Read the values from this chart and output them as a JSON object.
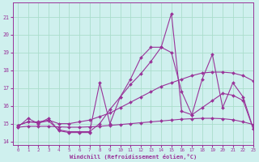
{
  "background_color": "#cff0ee",
  "grid_color": "#aaddcc",
  "line_color": "#993399",
  "xlim": [
    -0.5,
    23
  ],
  "ylim": [
    13.8,
    21.8
  ],
  "yticks": [
    14,
    15,
    16,
    17,
    18,
    19,
    20,
    21
  ],
  "xticks": [
    0,
    1,
    2,
    3,
    4,
    5,
    6,
    7,
    8,
    9,
    10,
    11,
    12,
    13,
    14,
    15,
    16,
    17,
    18,
    19,
    20,
    21,
    22,
    23
  ],
  "xlabel": "Windchill (Refroidissement éolien,°C)",
  "series": [
    {
      "x": [
        0,
        1,
        2,
        3,
        4,
        5,
        6,
        7,
        8,
        9,
        10,
        11,
        12,
        13,
        14,
        15,
        16,
        17,
        18,
        19,
        20,
        21,
        22,
        23
      ],
      "y": [
        14.8,
        15.3,
        15.0,
        15.3,
        14.6,
        14.5,
        14.5,
        14.5,
        17.3,
        15.0,
        16.5,
        17.5,
        18.7,
        19.3,
        19.3,
        21.2,
        15.7,
        15.5,
        17.5,
        18.9,
        15.9,
        17.3,
        16.5,
        14.7
      ]
    },
    {
      "x": [
        0,
        1,
        2,
        3,
        4,
        5,
        6,
        7,
        8,
        9,
        10,
        11,
        12,
        13,
        14,
        15,
        16,
        17,
        18,
        19,
        20,
        21,
        22,
        23
      ],
      "y": [
        14.9,
        15.1,
        15.1,
        15.2,
        15.0,
        15.0,
        15.1,
        15.2,
        15.4,
        15.6,
        15.9,
        16.2,
        16.5,
        16.8,
        17.1,
        17.3,
        17.5,
        17.7,
        17.85,
        17.9,
        17.9,
        17.85,
        17.7,
        17.4
      ]
    },
    {
      "x": [
        0,
        1,
        2,
        3,
        4,
        5,
        6,
        7,
        8,
        9,
        10,
        11,
        12,
        13,
        14,
        15,
        16,
        17,
        18,
        19,
        20,
        21,
        22,
        23
      ],
      "y": [
        14.8,
        14.85,
        14.85,
        14.85,
        14.82,
        14.8,
        14.8,
        14.82,
        14.85,
        14.9,
        14.95,
        15.0,
        15.05,
        15.1,
        15.15,
        15.2,
        15.25,
        15.28,
        15.3,
        15.3,
        15.28,
        15.22,
        15.1,
        14.95
      ]
    },
    {
      "x": [
        0,
        1,
        2,
        3,
        4,
        5,
        6,
        7,
        8,
        9,
        10,
        11,
        12,
        13,
        14,
        15,
        16,
        17,
        18,
        19,
        20,
        21,
        22,
        23
      ],
      "y": [
        14.9,
        15.1,
        15.05,
        15.15,
        14.65,
        14.55,
        14.55,
        14.55,
        15.0,
        15.8,
        16.5,
        17.2,
        17.8,
        18.5,
        19.3,
        19.0,
        16.8,
        15.5,
        15.9,
        16.3,
        16.7,
        16.6,
        16.3,
        14.7
      ]
    }
  ]
}
